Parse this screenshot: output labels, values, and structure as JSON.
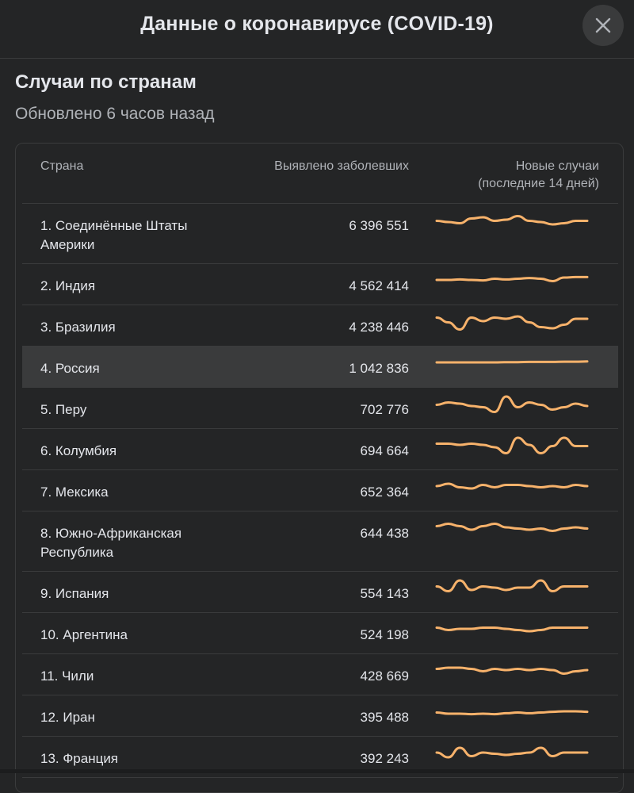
{
  "header": {
    "title": "Данные о коронавирусе (COVID-19)",
    "close_icon": "close-icon"
  },
  "section": {
    "title": "Случаи по странам",
    "subtitle": "Обновлено 6 часов назад"
  },
  "table": {
    "headers": {
      "country": "Страна",
      "cases": "Выявлено заболевших",
      "new_cases": "Новые случаи",
      "new_cases_sub": "(последние 14 дней)"
    },
    "accent_color": "#f7b26b",
    "rows": [
      {
        "country": "1. Соединённые Штаты Америки",
        "cases": "6 396 551",
        "trend": [
          0.55,
          0.6,
          0.65,
          0.45,
          0.4,
          0.55,
          0.5,
          0.35,
          0.55,
          0.6,
          0.7,
          0.65,
          0.55,
          0.55
        ]
      },
      {
        "country": "2. Индия",
        "cases": "4 562 414",
        "trend": [
          0.5,
          0.5,
          0.48,
          0.5,
          0.52,
          0.45,
          0.48,
          0.45,
          0.42,
          0.45,
          0.55,
          0.4,
          0.38,
          0.38
        ]
      },
      {
        "country": "3. Бразилия",
        "cases": "4 238 446",
        "trend": [
          0.35,
          0.55,
          0.85,
          0.35,
          0.5,
          0.35,
          0.4,
          0.3,
          0.55,
          0.75,
          0.8,
          0.65,
          0.4,
          0.4
        ]
      },
      {
        "country": "4. Россия",
        "cases": "1 042 836",
        "trend": [
          0.5,
          0.5,
          0.5,
          0.5,
          0.5,
          0.5,
          0.49,
          0.49,
          0.48,
          0.48,
          0.48,
          0.47,
          0.47,
          0.46
        ]
      },
      {
        "country": "5. Перу",
        "cases": "702 776",
        "trend": [
          0.55,
          0.45,
          0.5,
          0.6,
          0.65,
          0.85,
          0.2,
          0.65,
          0.45,
          0.55,
          0.75,
          0.65,
          0.5,
          0.6
        ]
      },
      {
        "country": "6. Колумбия",
        "cases": "694 664",
        "trend": [
          0.45,
          0.45,
          0.5,
          0.45,
          0.5,
          0.6,
          0.85,
          0.2,
          0.5,
          0.85,
          0.55,
          0.2,
          0.55,
          0.55
        ]
      },
      {
        "country": "7. Мексика",
        "cases": "652 364",
        "trend": [
          0.5,
          0.4,
          0.55,
          0.6,
          0.45,
          0.55,
          0.45,
          0.45,
          0.5,
          0.55,
          0.5,
          0.55,
          0.45,
          0.5
        ]
      },
      {
        "country": "8. Южно-Африканская Республика",
        "cases": "644 438",
        "trend": [
          0.45,
          0.35,
          0.45,
          0.6,
          0.45,
          0.35,
          0.5,
          0.55,
          0.6,
          0.55,
          0.65,
          0.55,
          0.5,
          0.55
        ]
      },
      {
        "country": "9. Испания",
        "cases": "554 143",
        "trend": [
          0.45,
          0.65,
          0.2,
          0.6,
          0.45,
          0.5,
          0.6,
          0.5,
          0.5,
          0.2,
          0.65,
          0.45,
          0.45,
          0.45
        ]
      },
      {
        "country": "10. Аргентина",
        "cases": "524 198",
        "trend": [
          0.45,
          0.55,
          0.5,
          0.5,
          0.45,
          0.45,
          0.5,
          0.55,
          0.6,
          0.55,
          0.45,
          0.45,
          0.45,
          0.45
        ]
      },
      {
        "country": "11. Чили",
        "cases": "428 669",
        "trend": [
          0.45,
          0.4,
          0.4,
          0.45,
          0.55,
          0.45,
          0.5,
          0.45,
          0.5,
          0.45,
          0.5,
          0.65,
          0.55,
          0.5
        ]
      },
      {
        "country": "12. Иран",
        "cases": "395 488",
        "trend": [
          0.55,
          0.6,
          0.6,
          0.62,
          0.6,
          0.62,
          0.58,
          0.55,
          0.58,
          0.55,
          0.52,
          0.5,
          0.5,
          0.52
        ]
      },
      {
        "country": "13. Франция",
        "cases": "392 243",
        "trend": [
          0.5,
          0.7,
          0.3,
          0.65,
          0.5,
          0.55,
          0.6,
          0.55,
          0.5,
          0.3,
          0.65,
          0.5,
          0.5,
          0.5
        ]
      }
    ]
  }
}
